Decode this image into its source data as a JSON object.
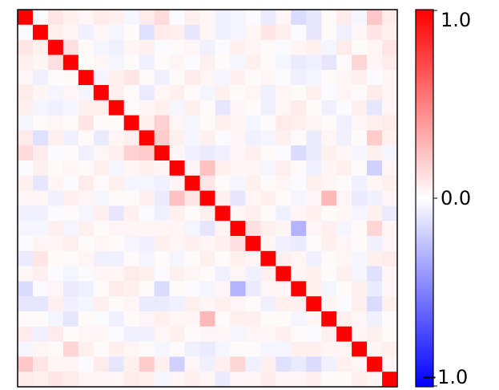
{
  "chart_data": {
    "type": "heatmap",
    "title": "",
    "xlabel": "",
    "ylabel": "",
    "n": 25,
    "colormap": "bwr",
    "vmin": -1.0,
    "vmax": 1.0,
    "colorbar": {
      "ticks": [
        1.0,
        0.0,
        -1.0
      ],
      "tick_labels": [
        "1.0",
        "0.0",
        "−1.0"
      ],
      "position": "right"
    },
    "x_ticks_visible": false,
    "y_ticks_visible": false,
    "values": [
      [
        1,
        -0.02,
        0.1,
        0.06,
        0.04,
        0.08,
        0.06,
        -0.04,
        0.08,
        0.14,
        -0.02,
        0.06,
        0.04,
        -0.06,
        -0.04,
        -0.02,
        -0.08,
        0.04,
        -0.14,
        -0.1,
        0.02,
        0.08,
        -0.04,
        0.22,
        0.08
      ],
      [
        -0.02,
        1,
        0.06,
        0.04,
        -0.06,
        0.04,
        -0.04,
        0.02,
        -0.12,
        0.08,
        0.06,
        -0.1,
        0.04,
        -0.06,
        -0.04,
        0.04,
        0.1,
        0.06,
        -0.02,
        -0.1,
        0.02,
        -0.06,
        0.04,
        0.1,
        0.06
      ],
      [
        0.1,
        0.06,
        1,
        0.12,
        0.02,
        -0.04,
        -0.06,
        0.04,
        0.06,
        -0.02,
        0.02,
        0.04,
        -0.06,
        -0.02,
        0.06,
        0.04,
        0.02,
        -0.02,
        0.04,
        0.06,
        -0.04,
        0.08,
        0.02,
        0.04,
        0.1
      ],
      [
        0.06,
        0.04,
        0.12,
        1,
        0.02,
        0.04,
        -0.04,
        0.02,
        -0.06,
        0.02,
        0.04,
        -0.02,
        0.06,
        0.02,
        -0.04,
        0.06,
        0.02,
        -0.04,
        -0.08,
        -0.06,
        -0.1,
        0.02,
        0.16,
        0.04,
        0.08
      ],
      [
        0.04,
        -0.06,
        0.02,
        0.02,
        1,
        -0.04,
        0.06,
        0.1,
        0.02,
        -0.06,
        0.02,
        0.08,
        0.04,
        -0.04,
        0.06,
        0.02,
        0.04,
        -0.02,
        -0.06,
        -0.04,
        0.02,
        0.04,
        0.06,
        -0.02,
        0.04
      ],
      [
        0.08,
        0.04,
        -0.04,
        0.04,
        -0.04,
        1,
        0.06,
        0.02,
        -0.08,
        0.04,
        0.06,
        0.02,
        -0.04,
        0.06,
        0.02,
        0.04,
        -0.06,
        0.04,
        0.02,
        0.06,
        -0.02,
        0.04,
        0.02,
        0.08,
        0.04
      ],
      [
        0.06,
        -0.04,
        -0.06,
        -0.04,
        0.06,
        0.06,
        1,
        0.02,
        0.04,
        0.06,
        -0.04,
        0.06,
        0.02,
        -0.1,
        0.04,
        0.02,
        -0.06,
        0.04,
        0.08,
        0.02,
        -0.06,
        -0.02,
        0.06,
        -0.1,
        0.04
      ],
      [
        -0.04,
        0.02,
        0.04,
        0.02,
        0.1,
        0.02,
        0.02,
        1,
        0.06,
        0.18,
        0.04,
        -0.04,
        0.02,
        0.06,
        0.04,
        -0.04,
        0.02,
        0.08,
        0.06,
        0.04,
        0.02,
        -0.06,
        0.04,
        0.06,
        0.08
      ],
      [
        0.08,
        -0.12,
        0.06,
        -0.06,
        0.02,
        -0.08,
        0.04,
        0.06,
        1,
        0.2,
        0.06,
        -0.04,
        0.06,
        -0.02,
        0.04,
        -0.06,
        -0.04,
        0.06,
        0.02,
        -0.08,
        0.04,
        -0.06,
        0.02,
        0.2,
        0.06
      ],
      [
        0.14,
        0.08,
        -0.02,
        0.02,
        -0.06,
        0.04,
        0.06,
        0.18,
        0.2,
        1,
        0.04,
        -0.06,
        -0.08,
        -0.06,
        0.04,
        0.06,
        0.02,
        -0.02,
        -0.14,
        -0.08,
        0.06,
        0.04,
        -0.04,
        0.06,
        -0.04
      ],
      [
        -0.02,
        0.06,
        0.02,
        0.04,
        0.02,
        0.06,
        -0.04,
        0.04,
        0.06,
        0.04,
        1,
        0.04,
        0.24,
        0.06,
        0.04,
        0.04,
        -0.04,
        0.06,
        0.02,
        -0.06,
        0.04,
        0.06,
        0.02,
        -0.18,
        0.04
      ],
      [
        0.06,
        -0.1,
        0.04,
        -0.02,
        0.08,
        0.02,
        0.06,
        -0.04,
        -0.04,
        -0.06,
        0.04,
        1,
        0.1,
        0.02,
        -0.04,
        0.06,
        0.02,
        0.04,
        -0.02,
        0.06,
        0.04,
        0.02,
        -0.06,
        0.04,
        0.06
      ],
      [
        0.04,
        0.04,
        -0.06,
        0.06,
        0.04,
        -0.04,
        0.02,
        0.02,
        0.06,
        -0.08,
        0.24,
        0.1,
        1,
        0.06,
        -0.1,
        0.04,
        0.06,
        0.02,
        -0.04,
        0.04,
        0.28,
        0.04,
        -0.08,
        -0.06,
        0.04
      ],
      [
        -0.06,
        -0.06,
        -0.02,
        0.02,
        -0.04,
        0.06,
        -0.1,
        0.06,
        -0.02,
        -0.06,
        0.06,
        0.02,
        0.06,
        1,
        0.04,
        0.06,
        0.02,
        -0.06,
        0.04,
        0.06,
        0.02,
        0.04,
        -0.04,
        0.06,
        -0.08
      ],
      [
        -0.04,
        -0.04,
        0.06,
        -0.04,
        0.06,
        0.02,
        0.04,
        0.04,
        0.04,
        0.04,
        0.04,
        -0.04,
        -0.1,
        0.04,
        1,
        0.12,
        0.06,
        0.04,
        -0.3,
        0.04,
        0.06,
        -0.04,
        0.02,
        0.16,
        0.04
      ],
      [
        -0.02,
        0.04,
        0.04,
        0.06,
        0.02,
        0.04,
        0.02,
        -0.04,
        -0.06,
        0.06,
        0.04,
        0.06,
        0.04,
        0.06,
        0.12,
        1,
        0.04,
        -0.06,
        -0.08,
        0.02,
        0.06,
        0.04,
        0.02,
        -0.06,
        0.04
      ],
      [
        -0.08,
        0.1,
        0.02,
        0.02,
        0.04,
        -0.06,
        -0.06,
        0.02,
        -0.04,
        0.02,
        -0.04,
        0.02,
        0.06,
        0.02,
        0.06,
        0.04,
        1,
        0.06,
        0.04,
        -0.06,
        0.02,
        0.04,
        -0.04,
        0.06,
        0.08
      ],
      [
        0.04,
        0.06,
        -0.02,
        -0.04,
        -0.02,
        0.04,
        0.04,
        0.08,
        0.06,
        -0.02,
        0.06,
        0.04,
        0.02,
        -0.06,
        0.04,
        -0.06,
        0.06,
        1,
        0.04,
        0.06,
        0.02,
        0.06,
        -0.04,
        -0.12,
        0.04
      ],
      [
        -0.14,
        -0.02,
        0.04,
        -0.08,
        -0.06,
        0.02,
        0.08,
        0.06,
        0.02,
        -0.14,
        0.02,
        -0.02,
        -0.04,
        0.04,
        -0.3,
        -0.08,
        0.04,
        0.04,
        1,
        0.06,
        -0.04,
        0.02,
        0.06,
        -0.08,
        0.04
      ],
      [
        -0.1,
        -0.1,
        0.06,
        -0.06,
        -0.04,
        0.06,
        0.02,
        0.04,
        -0.08,
        -0.08,
        -0.06,
        0.06,
        0.04,
        0.06,
        0.04,
        0.02,
        -0.06,
        0.06,
        0.06,
        1,
        0.04,
        -0.02,
        0.06,
        -0.14,
        0.06
      ],
      [
        0.02,
        0.02,
        -0.04,
        -0.1,
        0.02,
        -0.02,
        -0.06,
        0.02,
        0.04,
        0.06,
        0.04,
        0.04,
        0.28,
        0.02,
        0.06,
        0.06,
        0.02,
        0.02,
        -0.04,
        0.04,
        1,
        0.06,
        0.04,
        -0.06,
        0.02
      ],
      [
        0.08,
        -0.06,
        0.08,
        0.02,
        0.04,
        0.04,
        -0.02,
        -0.06,
        -0.06,
        0.04,
        0.06,
        0.02,
        0.04,
        0.04,
        -0.04,
        0.04,
        0.04,
        0.06,
        0.02,
        -0.02,
        0.06,
        1,
        0.04,
        0.06,
        0.02
      ],
      [
        -0.04,
        0.04,
        0.02,
        0.16,
        0.06,
        0.02,
        0.06,
        0.04,
        0.02,
        -0.04,
        0.02,
        -0.06,
        -0.08,
        -0.04,
        0.02,
        0.02,
        -0.04,
        -0.04,
        0.06,
        0.06,
        0.04,
        0.04,
        1,
        0.04,
        0.06
      ],
      [
        0.22,
        0.1,
        0.04,
        0.04,
        -0.02,
        0.08,
        -0.1,
        0.06,
        0.2,
        0.06,
        -0.18,
        0.04,
        -0.06,
        0.06,
        0.16,
        -0.06,
        0.06,
        -0.12,
        -0.08,
        -0.14,
        -0.06,
        0.06,
        0.04,
        1,
        0.04
      ],
      [
        0.08,
        0.06,
        0.1,
        0.08,
        0.04,
        0.04,
        0.04,
        0.08,
        0.06,
        -0.04,
        0.04,
        0.06,
        0.04,
        -0.08,
        0.04,
        0.04,
        0.08,
        0.04,
        0.04,
        0.06,
        0.02,
        0.02,
        0.06,
        0.04,
        1
      ]
    ]
  }
}
